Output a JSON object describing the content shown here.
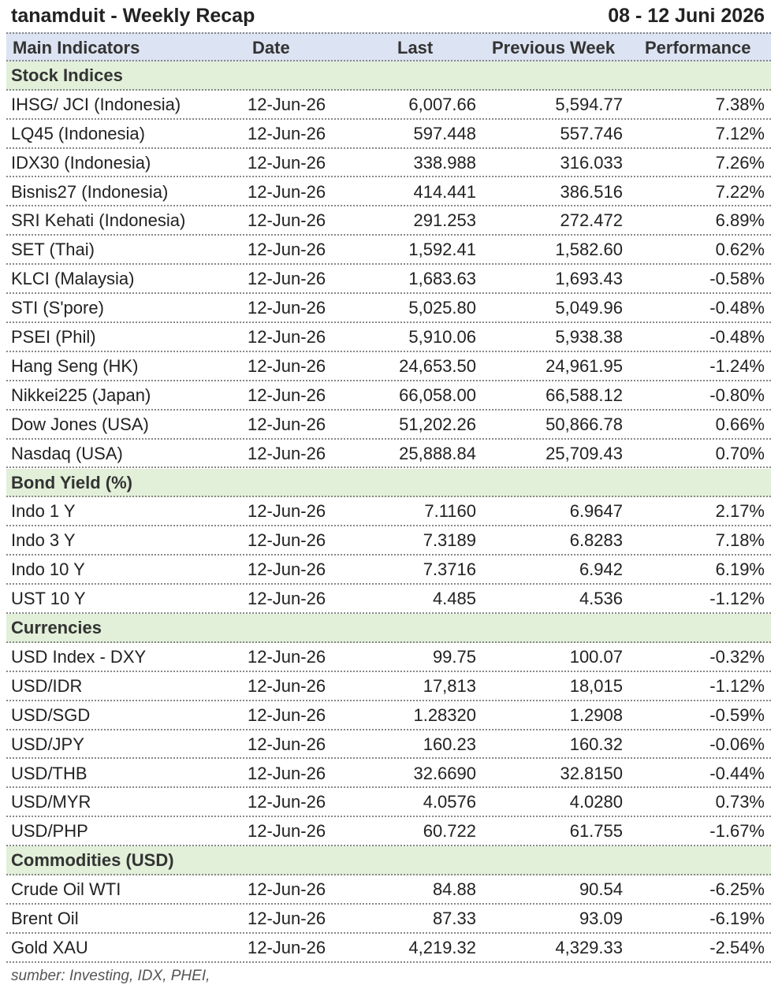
{
  "header": {
    "title": "tanamduit - Weekly Recap",
    "period": "08 - 12 Juni 2026"
  },
  "table": {
    "columns": [
      "Main Indicators",
      "Date",
      "Last",
      "Previous Week",
      "Performance"
    ],
    "sections": [
      {
        "title": "Stock Indices",
        "rows": [
          [
            "IHSG/ JCI (Indonesia)",
            "12-Jun-26",
            "6,007.66",
            "5,594.77",
            "7.38%"
          ],
          [
            "LQ45 (Indonesia)",
            "12-Jun-26",
            "597.448",
            "557.746",
            "7.12%"
          ],
          [
            "IDX30 (Indonesia)",
            "12-Jun-26",
            "338.988",
            "316.033",
            "7.26%"
          ],
          [
            "Bisnis27 (Indonesia)",
            "12-Jun-26",
            "414.441",
            "386.516",
            "7.22%"
          ],
          [
            "SRI Kehati (Indonesia)",
            "12-Jun-26",
            "291.253",
            "272.472",
            "6.89%"
          ],
          [
            "SET (Thai)",
            "12-Jun-26",
            "1,592.41",
            "1,582.60",
            "0.62%"
          ],
          [
            "KLCI (Malaysia)",
            "12-Jun-26",
            "1,683.63",
            "1,693.43",
            "-0.58%"
          ],
          [
            "STI (S'pore)",
            "12-Jun-26",
            "5,025.80",
            "5,049.96",
            "-0.48%"
          ],
          [
            "PSEI (Phil)",
            "12-Jun-26",
            "5,910.06",
            "5,938.38",
            "-0.48%"
          ],
          [
            "Hang Seng (HK)",
            "12-Jun-26",
            "24,653.50",
            "24,961.95",
            "-1.24%"
          ],
          [
            "Nikkei225 (Japan)",
            "12-Jun-26",
            "66,058.00",
            "66,588.12",
            "-0.80%"
          ],
          [
            "Dow Jones (USA)",
            "12-Jun-26",
            "51,202.26",
            "50,866.78",
            "0.66%"
          ],
          [
            "Nasdaq (USA)",
            "12-Jun-26",
            "25,888.84",
            "25,709.43",
            "0.70%"
          ]
        ]
      },
      {
        "title": "Bond Yield (%)",
        "rows": [
          [
            "Indo 1 Y",
            "12-Jun-26",
            "7.1160",
            "6.9647",
            "2.17%"
          ],
          [
            "Indo 3 Y",
            "12-Jun-26",
            "7.3189",
            "6.8283",
            "7.18%"
          ],
          [
            "Indo 10 Y",
            "12-Jun-26",
            "7.3716",
            "6.942",
            "6.19%"
          ],
          [
            "UST 10 Y",
            "12-Jun-26",
            "4.485",
            "4.536",
            "-1.12%"
          ]
        ]
      },
      {
        "title": "Currencies",
        "rows": [
          [
            "USD Index - DXY",
            "12-Jun-26",
            "99.75",
            "100.07",
            "-0.32%"
          ],
          [
            "USD/IDR",
            "12-Jun-26",
            "17,813",
            "18,015",
            "-1.12%"
          ],
          [
            "USD/SGD",
            "12-Jun-26",
            "1.28320",
            "1.2908",
            "-0.59%"
          ],
          [
            "USD/JPY",
            "12-Jun-26",
            "160.23",
            "160.32",
            "-0.06%"
          ],
          [
            "USD/THB",
            "12-Jun-26",
            "32.6690",
            "32.8150",
            "-0.44%"
          ],
          [
            "USD/MYR",
            "12-Jun-26",
            "4.0576",
            "4.0280",
            "0.73%"
          ],
          [
            "USD/PHP",
            "12-Jun-26",
            "60.722",
            "61.755",
            "-1.67%"
          ]
        ]
      },
      {
        "title": "Commodities (USD)",
        "rows": [
          [
            "Crude Oil WTI",
            "12-Jun-26",
            "84.88",
            "90.54",
            "-6.25%"
          ],
          [
            "Brent Oil",
            "12-Jun-26",
            "87.33",
            "93.09",
            "-6.19%"
          ],
          [
            "Gold XAU",
            "12-Jun-26",
            "4,219.32",
            "4,329.33",
            "-2.54%"
          ]
        ]
      }
    ]
  },
  "footer": "sumber: Investing, IDX, PHEI,"
}
